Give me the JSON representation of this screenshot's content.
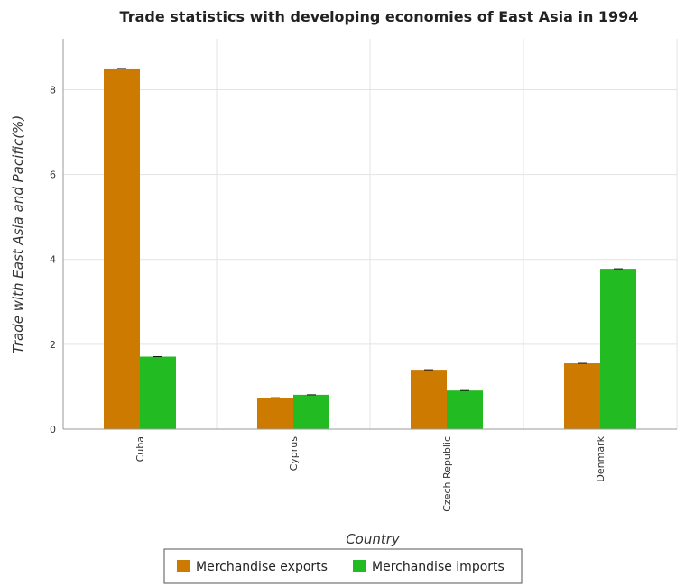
{
  "chart_data": {
    "type": "bar",
    "title": "Trade statistics with developing economies of East Asia in 1994",
    "xlabel": "Country",
    "ylabel": "Trade with East Asia and Pacific(%)",
    "categories": [
      "Cuba",
      "Cyprus",
      "Czech Republic",
      "Denmark"
    ],
    "series": [
      {
        "name": "Merchandise exports",
        "color": "#cc7a00",
        "values": [
          8.5,
          0.74,
          1.4,
          1.55
        ]
      },
      {
        "name": "Merchandise imports",
        "color": "#22bb22",
        "values": [
          1.71,
          0.81,
          0.91,
          3.78
        ]
      }
    ],
    "ylim": [
      0,
      9.2
    ],
    "yticks": [
      0,
      2,
      4,
      6,
      8
    ],
    "grid": true,
    "legend_position": "bottom-center"
  }
}
